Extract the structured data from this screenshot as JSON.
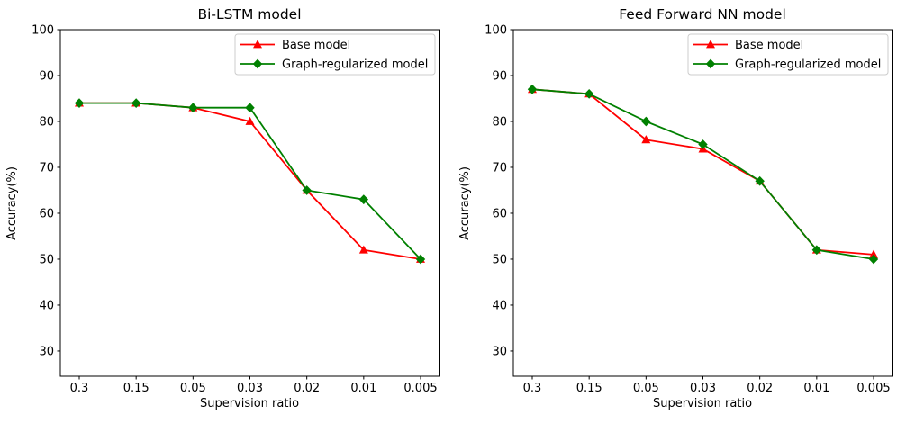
{
  "chart_data": [
    {
      "type": "line",
      "title": "Bi-LSTM model",
      "xlabel": "Supervision ratio",
      "ylabel": "Accuracy(%)",
      "categories": [
        "0.3",
        "0.15",
        "0.05",
        "0.03",
        "0.02",
        "0.01",
        "0.005"
      ],
      "yticks": [
        100,
        90,
        80,
        70,
        60,
        50,
        40,
        30
      ],
      "ylim": [
        24.5,
        100
      ],
      "grid": false,
      "legend_position": "upper right",
      "series": [
        {
          "name": "Base model",
          "color": "#ff0000",
          "marker": "triangle",
          "values": [
            84,
            84,
            83,
            80,
            65,
            52,
            50
          ]
        },
        {
          "name": "Graph-regularized model",
          "color": "#008000",
          "marker": "diamond",
          "values": [
            84,
            84,
            83,
            83,
            65,
            63,
            50
          ]
        }
      ]
    },
    {
      "type": "line",
      "title": "Feed Forward NN model",
      "xlabel": "Supervision ratio",
      "ylabel": "Accuracy(%)",
      "categories": [
        "0.3",
        "0.15",
        "0.05",
        "0.03",
        "0.02",
        "0.01",
        "0.005"
      ],
      "yticks": [
        100,
        90,
        80,
        70,
        60,
        50,
        40,
        30
      ],
      "ylim": [
        24.5,
        100
      ],
      "grid": false,
      "legend_position": "upper right",
      "series": [
        {
          "name": "Base model",
          "color": "#ff0000",
          "marker": "triangle",
          "values": [
            87,
            86,
            76,
            74,
            67,
            52,
            51
          ]
        },
        {
          "name": "Graph-regularized model",
          "color": "#008000",
          "marker": "diamond",
          "values": [
            87,
            86,
            80,
            75,
            67,
            52,
            50
          ]
        }
      ]
    }
  ]
}
